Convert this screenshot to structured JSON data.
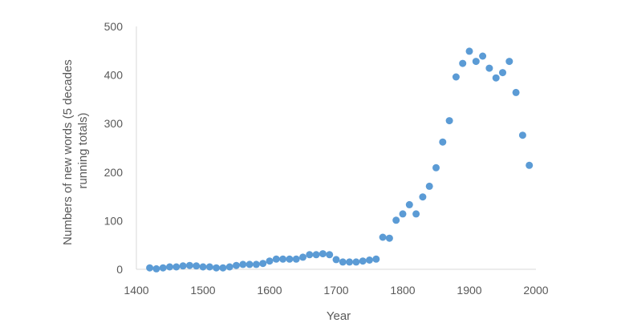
{
  "chart_data": {
    "type": "scatter",
    "xlabel": "Year",
    "ylabel": "Numbers of new words (5 decades running totals)",
    "ylabel_lines": [
      "Numbers of new words (5 decades",
      "running totals)"
    ],
    "xlim": [
      1400,
      2000
    ],
    "ylim": [
      0,
      500
    ],
    "xticks": [
      1400,
      1500,
      1600,
      1700,
      1800,
      1900,
      2000
    ],
    "yticks": [
      0,
      100,
      200,
      300,
      400,
      500
    ],
    "grid": false,
    "legend": "none",
    "marker_color": "#5B9BD5",
    "axis_color": "#D9D9D9",
    "text_color": "#595959",
    "x": [
      1420,
      1430,
      1440,
      1450,
      1460,
      1470,
      1480,
      1490,
      1500,
      1510,
      1520,
      1530,
      1540,
      1550,
      1560,
      1570,
      1580,
      1590,
      1600,
      1610,
      1620,
      1630,
      1640,
      1650,
      1660,
      1670,
      1680,
      1690,
      1700,
      1710,
      1720,
      1730,
      1740,
      1750,
      1760,
      1770,
      1780,
      1790,
      1800,
      1810,
      1820,
      1830,
      1840,
      1850,
      1860,
      1870,
      1880,
      1890,
      1900,
      1910,
      1920,
      1930,
      1940,
      1950,
      1960,
      1970,
      1980,
      1990
    ],
    "y": [
      3,
      1,
      3,
      5,
      5,
      7,
      8,
      7,
      5,
      5,
      3,
      3,
      5,
      8,
      10,
      10,
      10,
      12,
      17,
      21,
      21,
      21,
      21,
      25,
      30,
      30,
      32,
      30,
      20,
      15,
      15,
      15,
      17,
      19,
      21,
      66,
      64,
      101,
      114,
      133,
      114,
      149,
      171,
      209,
      262,
      306,
      396,
      424,
      449,
      428,
      439,
      414,
      394,
      405,
      428,
      364,
      276,
      214
    ]
  }
}
